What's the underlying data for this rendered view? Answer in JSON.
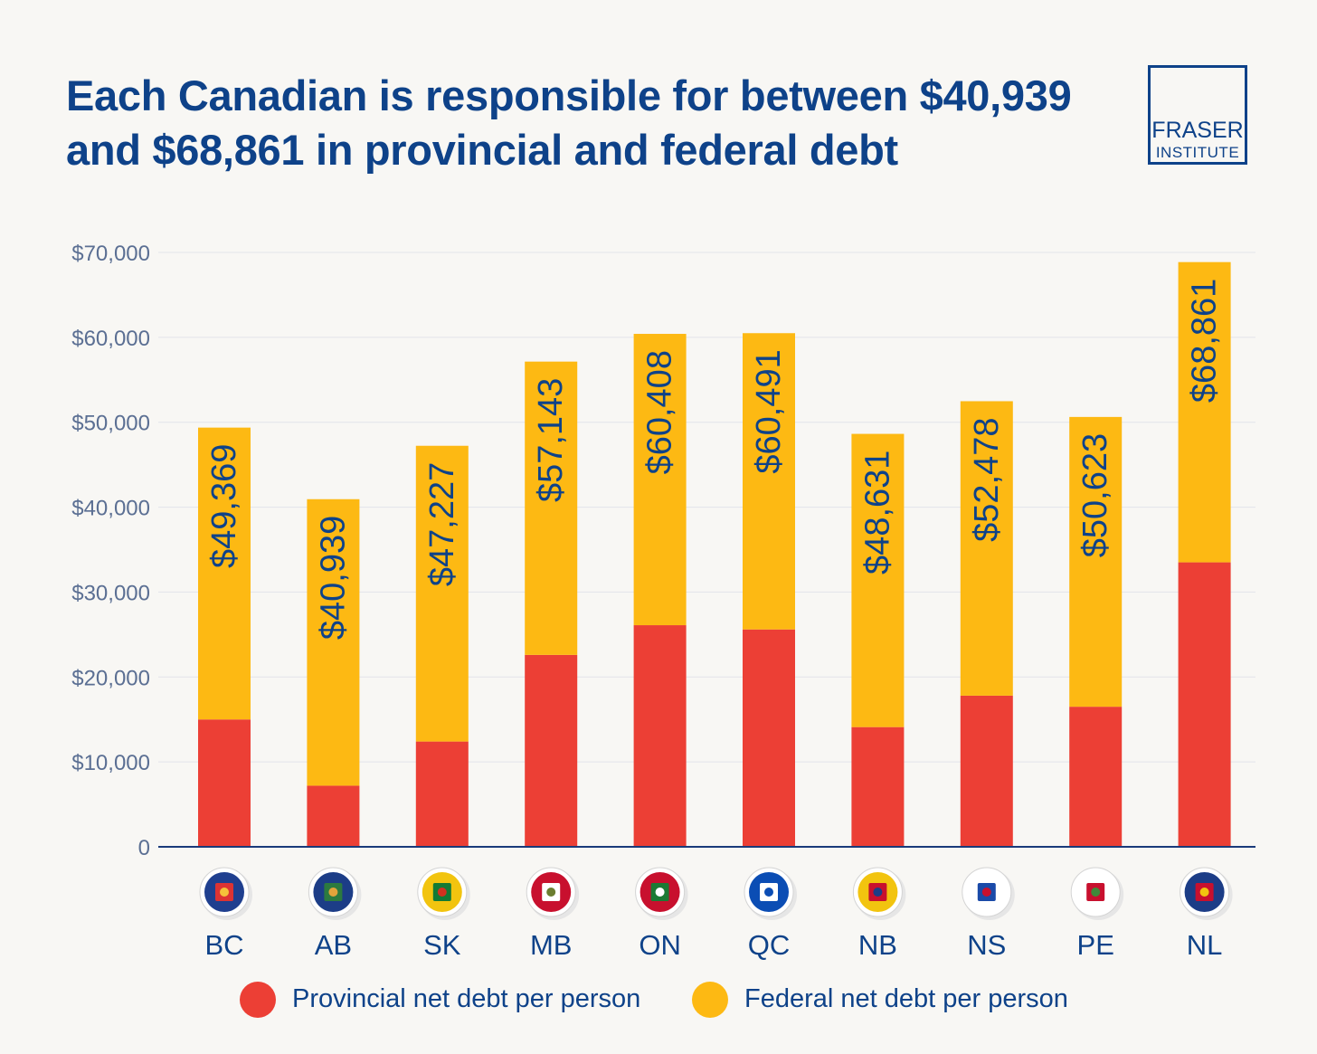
{
  "title": "Each Canadian is responsible for between $40,939 and $68,861 in provincial and federal debt",
  "logo": {
    "line1": "FRASER",
    "line2": "INSTITUTE"
  },
  "colors": {
    "provincial": "#ec3f35",
    "federal": "#fdb913",
    "text": "#0e4289",
    "axis_text": "#5b6f93",
    "grid": "#e2e4ea",
    "baseline": "#1a3a7a"
  },
  "chart_data": {
    "type": "bar",
    "stacked": true,
    "categories": [
      "BC",
      "AB",
      "SK",
      "MB",
      "ON",
      "QC",
      "NB",
      "NS",
      "PE",
      "NL"
    ],
    "category_icons": [
      "bc-flag-icon",
      "ab-flag-icon",
      "sk-flag-icon",
      "mb-flag-icon",
      "on-flag-icon",
      "qc-flag-icon",
      "nb-flag-icon",
      "ns-flag-icon",
      "pe-flag-icon",
      "nl-flag-icon"
    ],
    "series": [
      {
        "name": "Provincial net debt per person",
        "values": [
          15000,
          7200,
          12400,
          22600,
          26100,
          25600,
          14100,
          17800,
          16500,
          33500
        ]
      },
      {
        "name": "Federal net debt per person",
        "values": [
          34369,
          33739,
          34827,
          34543,
          34308,
          34891,
          34531,
          34678,
          34123,
          35361
        ]
      }
    ],
    "totals": [
      49369,
      40939,
      47227,
      57143,
      60408,
      60491,
      48631,
      52478,
      50623,
      68861
    ],
    "total_labels": [
      "$49,369",
      "$40,939",
      "$47,227",
      "$57,143",
      "$60,408",
      "$60,491",
      "$48,631",
      "$52,478",
      "$50,623",
      "$68,861"
    ],
    "yticks": [
      0,
      10000,
      20000,
      30000,
      40000,
      50000,
      60000,
      70000
    ],
    "ytick_labels": [
      "0",
      "$10,000",
      "$20,000",
      "$30,000",
      "$40,000",
      "$50,000",
      "$60,000",
      "$70,000"
    ],
    "ylim": [
      0,
      70000
    ],
    "grid": true,
    "legend_position": "bottom",
    "xlabel": "",
    "ylabel": ""
  }
}
